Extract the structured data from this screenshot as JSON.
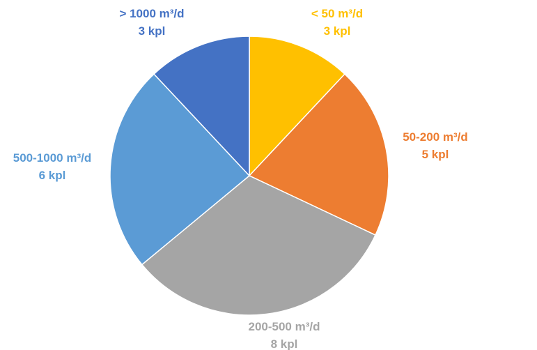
{
  "chart_data": {
    "type": "pie",
    "title": "",
    "start_angle_deg": 0,
    "direction": "clockwise",
    "legend": "none",
    "slices": [
      {
        "name": "< 50 m³/d",
        "value": 3,
        "value_label": "3 kpl",
        "color": "#FFC000"
      },
      {
        "name": "50-200 m³/d",
        "value": 5,
        "value_label": "5 kpl",
        "color": "#ED7D31"
      },
      {
        "name": "200-500 m³/d",
        "value": 8,
        "value_label": "8 kpl",
        "color": "#A5A5A5"
      },
      {
        "name": "500-1000 m³/d",
        "value": 6,
        "value_label": "6 kpl",
        "color": "#5B9BD5"
      },
      {
        "name": "> 1000 m³/d",
        "value": 3,
        "value_label": "3 kpl",
        "color": "#4472C4"
      }
    ]
  }
}
